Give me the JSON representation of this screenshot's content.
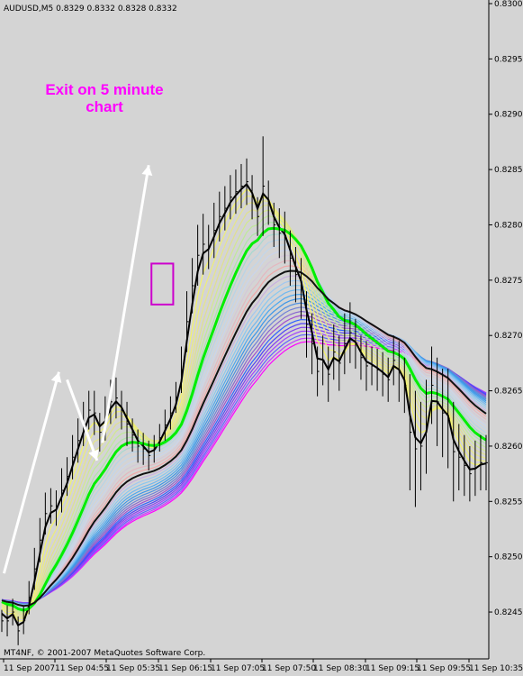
{
  "chart_data": {
    "type": "line",
    "title": "AUDUSD,M5  0.8329 0.8332 0.8328 0.8332",
    "symbol": "AUDUSD",
    "timeframe": "M5",
    "quote": "0.8329 0.8332 0.8328 0.8332",
    "footer": "MT4NF, © 2001-2007 MetaQuotes Software Corp.",
    "annotation": {
      "line1": "Exit on 5 minute",
      "line2": "chart",
      "color": "#ff00ff"
    },
    "ylim": [
      0.82415,
      0.83
    ],
    "y_ticks": [
      "0.8300",
      "0.8295",
      "0.8290",
      "0.8285",
      "0.8280",
      "0.8275",
      "0.8270",
      "0.8265",
      "0.8260",
      "0.8255",
      "0.8250",
      "0.8245"
    ],
    "x_ticks": [
      "11 Sep 2007",
      "11 Sep 04:55",
      "11 Sep 05:35",
      "11 Sep 06:15",
      "11 Sep 07:05",
      "11 Sep 07:50",
      "11 Sep 08:30",
      "11 Sep 09:15",
      "11 Sep 09:55",
      "11 Sep 10:35"
    ],
    "grid": false,
    "colors": {
      "background": "#d4d4d4",
      "bars": "#000000",
      "arrows": "#ffffff",
      "highlight_box": "#cc00cc",
      "bold_fast_ma": "#000000",
      "bold_mid_ma": "#00ee00",
      "bold_slow_ma": "#111111"
    },
    "price_bars": [
      [
        0.82452,
        0.82432
      ],
      [
        0.82456,
        0.82428
      ],
      [
        0.82462,
        0.82438
      ],
      [
        0.82446,
        0.8242
      ],
      [
        0.82455,
        0.8243
      ],
      [
        0.82478,
        0.82448
      ],
      [
        0.82508,
        0.8247
      ],
      [
        0.82535,
        0.82495
      ],
      [
        0.82558,
        0.8252
      ],
      [
        0.82562,
        0.8253
      ],
      [
        0.8256,
        0.82528
      ],
      [
        0.8258,
        0.8254
      ],
      [
        0.8259,
        0.82555
      ],
      [
        0.8261,
        0.8257
      ],
      [
        0.82625,
        0.82585
      ],
      [
        0.8264,
        0.826
      ],
      [
        0.8265,
        0.82615
      ],
      [
        0.8265,
        0.8261
      ],
      [
        0.8263,
        0.82595
      ],
      [
        0.82645,
        0.82605
      ],
      [
        0.8266,
        0.8262
      ],
      [
        0.82662,
        0.82625
      ],
      [
        0.8265,
        0.82615
      ],
      [
        0.8264,
        0.826
      ],
      [
        0.82625,
        0.82595
      ],
      [
        0.82615,
        0.82585
      ],
      [
        0.82612,
        0.82583
      ],
      [
        0.82605,
        0.82578
      ],
      [
        0.8261,
        0.82585
      ],
      [
        0.8262,
        0.82595
      ],
      [
        0.82633,
        0.82605
      ],
      [
        0.82645,
        0.82615
      ],
      [
        0.82658,
        0.8263
      ],
      [
        0.8269,
        0.82648
      ],
      [
        0.8274,
        0.82685
      ],
      [
        0.8277,
        0.8272
      ],
      [
        0.828,
        0.82745
      ],
      [
        0.8281,
        0.82755
      ],
      [
        0.828,
        0.8276
      ],
      [
        0.8282,
        0.8277
      ],
      [
        0.8283,
        0.82785
      ],
      [
        0.82835,
        0.82795
      ],
      [
        0.82845,
        0.82805
      ],
      [
        0.8285,
        0.8281
      ],
      [
        0.82855,
        0.82815
      ],
      [
        0.8286,
        0.82818
      ],
      [
        0.82845,
        0.82805
      ],
      [
        0.82825,
        0.8279
      ],
      [
        0.8288,
        0.8279
      ],
      [
        0.8284,
        0.828
      ],
      [
        0.8282,
        0.8278
      ],
      [
        0.82815,
        0.8277
      ],
      [
        0.82812,
        0.82765
      ],
      [
        0.82795,
        0.82745
      ],
      [
        0.8278,
        0.8273
      ],
      [
        0.8277,
        0.82715
      ],
      [
        0.8274,
        0.8268
      ],
      [
        0.8272,
        0.82665
      ],
      [
        0.8269,
        0.82645
      ],
      [
        0.827,
        0.82655
      ],
      [
        0.8269,
        0.8264
      ],
      [
        0.8271,
        0.8266
      ],
      [
        0.827,
        0.8265
      ],
      [
        0.8272,
        0.82665
      ],
      [
        0.8273,
        0.82675
      ],
      [
        0.82715,
        0.8267
      ],
      [
        0.827,
        0.8266
      ],
      [
        0.82695,
        0.8265
      ],
      [
        0.8269,
        0.82655
      ],
      [
        0.82688,
        0.8265
      ],
      [
        0.82685,
        0.82645
      ],
      [
        0.8268,
        0.8264
      ],
      [
        0.827,
        0.82655
      ],
      [
        0.82695,
        0.8264
      ],
      [
        0.8268,
        0.8263
      ],
      [
        0.82665,
        0.8256
      ],
      [
        0.8265,
        0.82545
      ],
      [
        0.8264,
        0.8256
      ],
      [
        0.8266,
        0.82575
      ],
      [
        0.8269,
        0.8262
      ],
      [
        0.8268,
        0.826
      ],
      [
        0.8267,
        0.8259
      ],
      [
        0.8267,
        0.8258
      ],
      [
        0.8264,
        0.8255
      ],
      [
        0.8262,
        0.8256
      ],
      [
        0.8261,
        0.82555
      ],
      [
        0.826,
        0.8255
      ],
      [
        0.82605,
        0.82555
      ],
      [
        0.8261,
        0.8256
      ],
      [
        0.8261,
        0.8256
      ]
    ],
    "ma_ribbon": {
      "count": 34,
      "colors": [
        "#ffff33",
        "#f5f566",
        "#eeee77",
        "#e6e688",
        "#dfe08f",
        "#d2e890",
        "#bfe99a",
        "#aee5a8",
        "#9ee0b8",
        "#a7d8d0",
        "#b7d3e6",
        "#c2d6ea",
        "#c9d4ec",
        "#d3c8d8",
        "#e3b8c0",
        "#f0a8a8",
        "#e6a0b0",
        "#c8b0e0",
        "#a0c8f0",
        "#88c8f0",
        "#70b8f0",
        "#4aa8f0",
        "#3c96e8",
        "#5090e0",
        "#7080d8",
        "#8868d0",
        "#a050d0",
        "#3060ff",
        "#5040f8",
        "#8040f0",
        "#a040ff",
        "#6060ff",
        "#c040ff",
        "#ff00ff"
      ],
      "start_price": 0.82462,
      "end_price_top": 0.8269,
      "end_price_bottom": 0.82615,
      "highlighted": [
        {
          "index": 0,
          "color": "#000000",
          "width": 2
        },
        {
          "index": 8,
          "color": "#00ee00",
          "width": 3
        },
        {
          "index": 16,
          "color": "#111111",
          "width": 2
        }
      ]
    },
    "arrows": [
      {
        "from": [
          0.4,
          0.82485
        ],
        "to": [
          10.5,
          0.82667
        ]
      },
      {
        "from": [
          12.0,
          0.8266
        ],
        "to": [
          17.5,
          0.82587
        ]
      },
      {
        "from": [
          18.5,
          0.82603
        ],
        "to": [
          27.0,
          0.82854
        ]
      }
    ],
    "highlight_box": {
      "x_from": 27.5,
      "x_to": 31.5,
      "y_from": 0.82765,
      "y_to": 0.82728
    }
  }
}
